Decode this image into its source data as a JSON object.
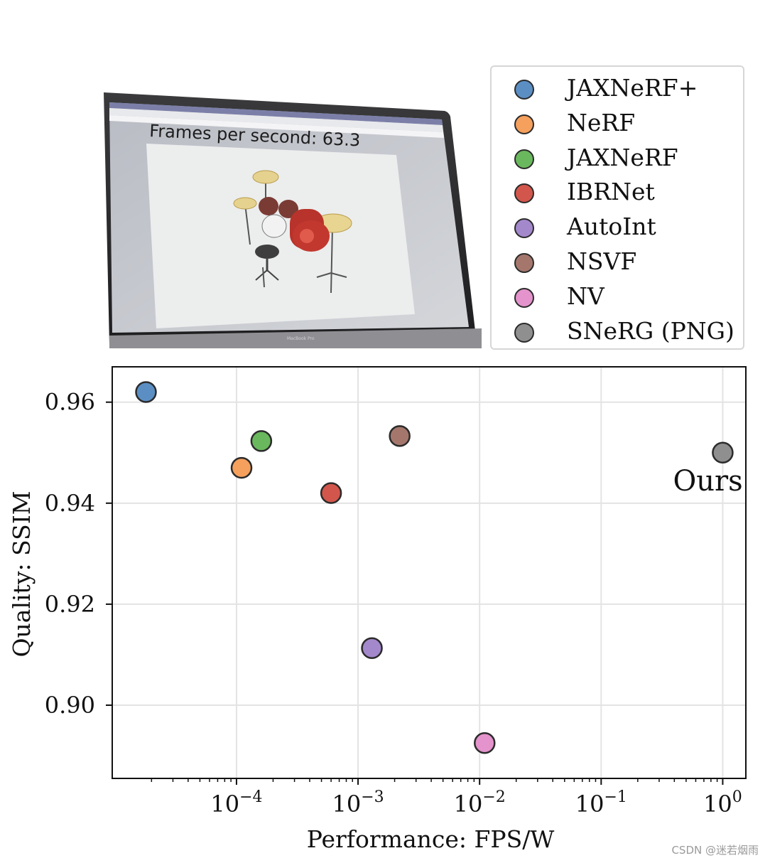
{
  "photo": {
    "overlay_text": "Frames per second: 63.3",
    "laptop_label": "MacBook Pro"
  },
  "legend": {
    "placement": "top-right",
    "items": [
      {
        "label": "JAXNeRF+",
        "color": "#5b8fc4"
      },
      {
        "label": "NeRF",
        "color": "#f5a05c"
      },
      {
        "label": "JAXNeRF",
        "color": "#6ab85d"
      },
      {
        "label": "IBRNet",
        "color": "#d3564c"
      },
      {
        "label": "AutoInt",
        "color": "#a488cc"
      },
      {
        "label": "NSVF",
        "color": "#a5776c"
      },
      {
        "label": "NV",
        "color": "#e493cc"
      },
      {
        "label": "SNeRG (PNG)",
        "color": "#8f8f8f"
      }
    ]
  },
  "chart_data": {
    "type": "scatter",
    "xscale": "log",
    "xlabel": "Performance: FPS/W",
    "ylabel": "Quality: SSIM",
    "xlim": [
      9.5e-06,
      1.55
    ],
    "ylim": [
      0.8855,
      0.967
    ],
    "xticks": [
      0.0001,
      0.001,
      0.01,
      0.1,
      1
    ],
    "xtick_exponents": [
      "−4",
      "−3",
      "−2",
      "−1",
      "0"
    ],
    "xtick_base": "10",
    "yticks": [
      0.9,
      0.92,
      0.94,
      0.96
    ],
    "ytick_labels": [
      "0.90",
      "0.92",
      "0.94",
      "0.96"
    ],
    "grid": true,
    "points": [
      {
        "name": "JAXNeRF+",
        "x": 1.8e-05,
        "y": 0.962,
        "color": "#5b8fc4"
      },
      {
        "name": "NeRF",
        "x": 0.00011,
        "y": 0.947,
        "color": "#f5a05c"
      },
      {
        "name": "JAXNeRF",
        "x": 0.00016,
        "y": 0.9523,
        "color": "#6ab85d"
      },
      {
        "name": "IBRNet",
        "x": 0.0006,
        "y": 0.942,
        "color": "#d3564c"
      },
      {
        "name": "AutoInt",
        "x": 0.0013,
        "y": 0.9113,
        "color": "#a488cc"
      },
      {
        "name": "NSVF",
        "x": 0.0022,
        "y": 0.9533,
        "color": "#a5776c"
      },
      {
        "name": "NV",
        "x": 0.011,
        "y": 0.8925,
        "color": "#e493cc"
      },
      {
        "name": "SNeRG (PNG)",
        "x": 1.0,
        "y": 0.95,
        "color": "#8f8f8f"
      }
    ],
    "annotations": [
      {
        "text": "Ours",
        "x": 0.39,
        "y": 0.9445
      }
    ]
  },
  "watermark": "CSDN @迷若烟雨"
}
